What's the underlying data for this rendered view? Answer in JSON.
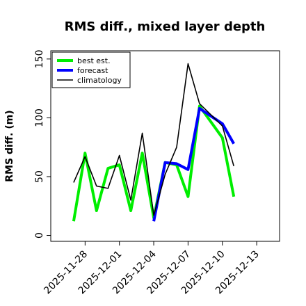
{
  "chart_data": {
    "type": "line",
    "title": "RMS diff., mixed layer depth",
    "xlabel": "",
    "ylabel": "RMS diff. (m)",
    "xlim": [
      "2025-11-25",
      "2025-12-15"
    ],
    "ylim": [
      -5,
      157
    ],
    "x_ticks": [
      "2025-11-28",
      "2025-12-01",
      "2025-12-04",
      "2025-12-07",
      "2025-12-10",
      "2025-12-13"
    ],
    "highlight_tick": "2025-12-04",
    "highlight_color": "#228b22",
    "y_ticks": [
      0,
      50,
      100,
      150
    ],
    "legend_position": "top-left",
    "series": [
      {
        "name": "best est.",
        "color": "#00ee00",
        "width": 4,
        "points": [
          [
            "2025-11-27",
            12
          ],
          [
            "2025-11-28",
            70
          ],
          [
            "2025-11-29",
            21
          ],
          [
            "2025-11-30",
            57
          ],
          [
            "2025-12-01",
            60
          ],
          [
            "2025-12-02",
            21
          ],
          [
            "2025-12-03",
            70
          ],
          [
            "2025-12-04",
            15
          ],
          [
            "2025-12-05",
            62
          ],
          [
            "2025-12-06",
            60
          ],
          [
            "2025-12-07",
            33
          ],
          [
            "2025-12-08",
            110
          ],
          [
            "2025-12-10",
            83
          ],
          [
            "2025-12-11",
            33
          ]
        ]
      },
      {
        "name": "forecast",
        "color": "#0000ff",
        "width": 4,
        "points": [
          [
            "2025-12-04",
            12
          ],
          [
            "2025-12-05",
            62
          ],
          [
            "2025-12-06",
            61
          ],
          [
            "2025-12-07",
            56
          ],
          [
            "2025-12-08",
            108
          ],
          [
            "2025-12-10",
            95
          ],
          [
            "2025-12-11",
            78
          ]
        ]
      },
      {
        "name": "climatology",
        "color": "#000000",
        "width": 1.6,
        "points": [
          [
            "2025-11-27",
            45
          ],
          [
            "2025-11-28",
            67
          ],
          [
            "2025-11-29",
            42
          ],
          [
            "2025-11-30",
            40
          ],
          [
            "2025-12-01",
            68
          ],
          [
            "2025-12-02",
            30
          ],
          [
            "2025-12-03",
            87
          ],
          [
            "2025-12-04",
            17
          ],
          [
            "2025-12-05",
            52
          ],
          [
            "2025-12-06",
            75
          ],
          [
            "2025-12-07",
            146
          ],
          [
            "2025-12-08",
            112
          ],
          [
            "2025-12-10",
            93
          ],
          [
            "2025-12-11",
            59
          ]
        ]
      }
    ]
  }
}
